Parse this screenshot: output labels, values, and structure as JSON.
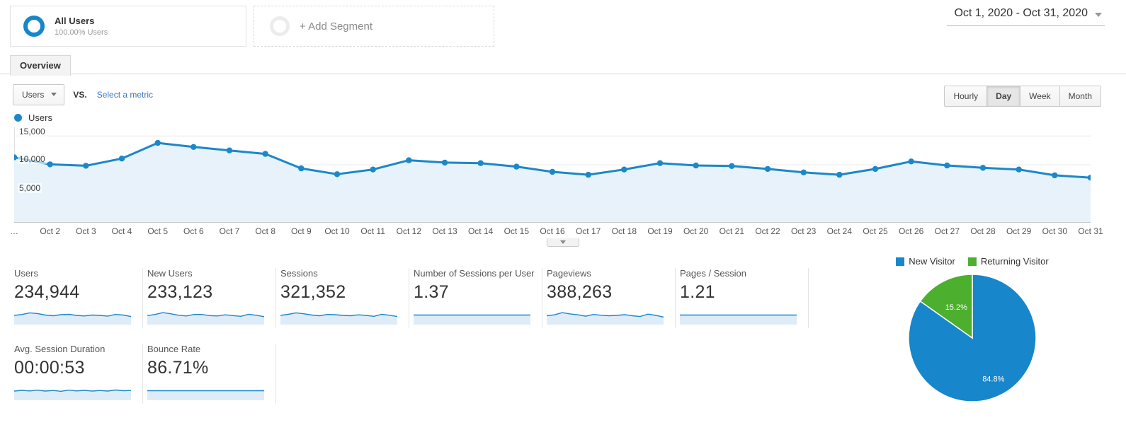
{
  "segments": {
    "all_users": {
      "title": "All Users",
      "subtitle": "100.00% Users"
    },
    "add_segment_label": "+ Add Segment"
  },
  "date_range": "Oct 1, 2020 - Oct 31, 2020",
  "tab_label": "Overview",
  "controls": {
    "metric_dropdown": "Users",
    "vs_label": "VS.",
    "select_metric_label": "Select a metric",
    "granularity": [
      "Hourly",
      "Day",
      "Week",
      "Month"
    ],
    "selected_granularity": "Day"
  },
  "colors": {
    "line_blue": "#1c87c9",
    "area_fill": "#e7f2fa",
    "spark_fill": "#ddecf7",
    "grid": "#e8e8e8",
    "axis": "#c9c9c9",
    "pie_blue": "#1786cb",
    "pie_green": "#4caf2e"
  },
  "chart_data": [
    {
      "type": "line",
      "name": "users-over-time",
      "legend": [
        "Users"
      ],
      "legend_position": "top-left",
      "grid": true,
      "ylim": [
        0,
        16500
      ],
      "yticks": [
        5000,
        10000,
        15000
      ],
      "ytick_labels": [
        "5,000",
        "10,000",
        "15,000"
      ],
      "x": [
        "Oct 1",
        "Oct 2",
        "Oct 3",
        "Oct 4",
        "Oct 5",
        "Oct 6",
        "Oct 7",
        "Oct 8",
        "Oct 9",
        "Oct 10",
        "Oct 11",
        "Oct 12",
        "Oct 13",
        "Oct 14",
        "Oct 15",
        "Oct 16",
        "Oct 17",
        "Oct 18",
        "Oct 19",
        "Oct 20",
        "Oct 21",
        "Oct 22",
        "Oct 23",
        "Oct 24",
        "Oct 25",
        "Oct 26",
        "Oct 27",
        "Oct 28",
        "Oct 29",
        "Oct 30",
        "Oct 31"
      ],
      "x_labels_display": [
        "…",
        "Oct 2",
        "Oct 3",
        "Oct 4",
        "Oct 5",
        "Oct 6",
        "Oct 7",
        "Oct 8",
        "Oct 9",
        "Oct 10",
        "Oct 11",
        "Oct 12",
        "Oct 13",
        "Oct 14",
        "Oct 15",
        "Oct 16",
        "Oct 17",
        "Oct 18",
        "Oct 19",
        "Oct 20",
        "Oct 21",
        "Oct 22",
        "Oct 23",
        "Oct 24",
        "Oct 25",
        "Oct 26",
        "Oct 27",
        "Oct 28",
        "Oct 29",
        "Oct 30",
        "Oct 31"
      ],
      "series": [
        {
          "name": "Users",
          "values": [
            11300,
            10100,
            9850,
            11100,
            13800,
            13100,
            12500,
            11900,
            9400,
            8400,
            9200,
            10800,
            10400,
            10300,
            9700,
            8800,
            8300,
            9200,
            10300,
            9900,
            9800,
            9300,
            8700,
            8300,
            9300,
            10600,
            9900,
            9500,
            9200,
            8200,
            7800
          ]
        }
      ]
    },
    {
      "type": "pie",
      "name": "visitor-type-split",
      "labels": [
        "New Visitor",
        "Returning Visitor"
      ],
      "values": [
        84.8,
        15.2
      ],
      "value_labels": [
        "84.8%",
        "15.2%"
      ],
      "colors": [
        "#1786cb",
        "#4caf2e"
      ],
      "legend_position": "top"
    }
  ],
  "metrics": {
    "row1": [
      {
        "label": "Users",
        "value": "234,944",
        "spark": [
          0.46,
          0.56,
          0.74,
          0.66,
          0.5,
          0.42,
          0.54,
          0.58,
          0.46,
          0.4,
          0.5,
          0.46,
          0.38,
          0.56,
          0.5,
          0.34
        ]
      },
      {
        "label": "New Users",
        "value": "233,123",
        "spark": [
          0.44,
          0.56,
          0.76,
          0.64,
          0.48,
          0.4,
          0.56,
          0.56,
          0.44,
          0.4,
          0.52,
          0.44,
          0.36,
          0.58,
          0.48,
          0.32
        ]
      },
      {
        "label": "Sessions",
        "value": "321,352",
        "spark": [
          0.46,
          0.58,
          0.74,
          0.64,
          0.5,
          0.42,
          0.56,
          0.54,
          0.46,
          0.42,
          0.52,
          0.46,
          0.36,
          0.58,
          0.48,
          0.34
        ]
      },
      {
        "label": "Number of Sessions per User",
        "value": "1.37",
        "spark": [
          0.5,
          0.5,
          0.5,
          0.5,
          0.5,
          0.5,
          0.5,
          0.5,
          0.5,
          0.5,
          0.5,
          0.5,
          0.5,
          0.5,
          0.5,
          0.5
        ]
      },
      {
        "label": "Pageviews",
        "value": "388,263",
        "spark": [
          0.42,
          0.52,
          0.76,
          0.62,
          0.52,
          0.38,
          0.56,
          0.48,
          0.42,
          0.46,
          0.54,
          0.42,
          0.34,
          0.6,
          0.46,
          0.28
        ]
      },
      {
        "label": "Pages / Session",
        "value": "1.21",
        "spark": [
          0.5,
          0.5,
          0.5,
          0.5,
          0.5,
          0.5,
          0.5,
          0.5,
          0.5,
          0.5,
          0.5,
          0.5,
          0.5,
          0.5,
          0.5,
          0.5
        ]
      }
    ],
    "row2": [
      {
        "label": "Avg. Session Duration",
        "value": "00:00:53",
        "spark": [
          0.46,
          0.54,
          0.48,
          0.56,
          0.46,
          0.52,
          0.44,
          0.56,
          0.48,
          0.54,
          0.46,
          0.52,
          0.46,
          0.58,
          0.5,
          0.52
        ]
      },
      {
        "label": "Bounce Rate",
        "value": "86.71%",
        "spark": [
          0.5,
          0.5,
          0.5,
          0.5,
          0.5,
          0.5,
          0.5,
          0.5,
          0.5,
          0.5,
          0.5,
          0.5,
          0.5,
          0.5,
          0.5,
          0.5
        ]
      }
    ]
  }
}
